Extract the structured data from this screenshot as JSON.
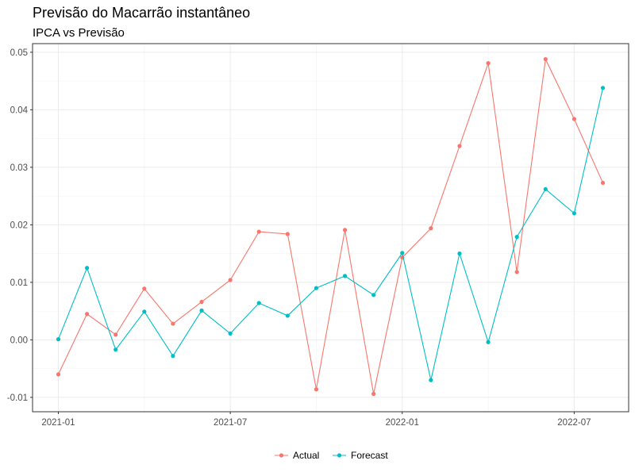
{
  "chart_data": {
    "type": "line",
    "title": "Previsão do Macarrão instantâneo",
    "subtitle": "IPCA vs Previsão",
    "xlabel": "",
    "ylabel": "",
    "x": [
      "2021-01",
      "2021-02",
      "2021-03",
      "2021-04",
      "2021-05",
      "2021-06",
      "2021-07",
      "2021-08",
      "2021-09",
      "2021-10",
      "2021-11",
      "2021-12",
      "2022-01",
      "2022-02",
      "2022-03",
      "2022-04",
      "2022-05",
      "2022-06",
      "2022-07",
      "2022-08"
    ],
    "x_ticks": [
      "2021-01",
      "2021-07",
      "2022-01",
      "2022-07"
    ],
    "y_ticks": [
      -0.01,
      0.0,
      0.01,
      0.02,
      0.03,
      0.04,
      0.05
    ],
    "y_tick_labels": [
      "-0.01",
      "0.00",
      "0.01",
      "0.02",
      "0.03",
      "0.04",
      "0.05"
    ],
    "ylim": [
      -0.0125,
      0.0515
    ],
    "grid": true,
    "legend_position": "bottom",
    "series": [
      {
        "name": "Actual",
        "color": "#F8766D",
        "values": [
          -0.006,
          0.0045,
          0.0009,
          0.0089,
          0.0028,
          0.0066,
          0.0104,
          0.0188,
          0.0184,
          -0.0086,
          0.0191,
          -0.0094,
          0.0143,
          0.0194,
          0.0337,
          0.0481,
          0.0118,
          0.0488,
          0.0384,
          0.0273
        ]
      },
      {
        "name": "Forecast",
        "color": "#00BFC4",
        "values": [
          0.0001,
          0.0125,
          -0.0017,
          0.0049,
          -0.0028,
          0.0051,
          0.0011,
          0.0064,
          0.0042,
          0.009,
          0.0111,
          0.0078,
          0.0151,
          -0.007,
          0.015,
          -0.0004,
          0.0179,
          0.0262,
          0.022,
          0.0438
        ]
      }
    ]
  }
}
